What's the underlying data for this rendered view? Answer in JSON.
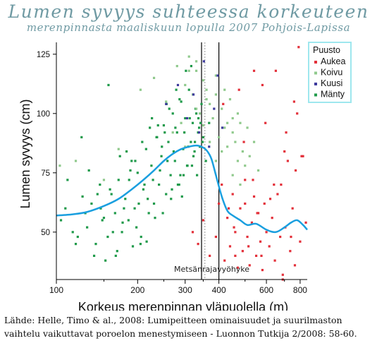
{
  "figure": {
    "title": "Lumen syvyys suhteessa korkeuteen",
    "subtitle": "merenpinnasta maaliskuun lopulla 2007 Pohjois-Lapissa",
    "source_line1": "Lähde: Helle, Timo & al., 2008: Lumipeitteen ominaisuudet ja suurilmaston",
    "source_line2": "vaihtelu vaikuttavat poroelon menestymiseen - Luonnon Tutkija 2/2008: 58-60."
  },
  "colors": {
    "Aukea": "#e3303a",
    "Koivu": "#8fc98c",
    "Kuusi": "#3d3a9c",
    "Mänty": "#1f9a4a",
    "trend": "#1a9fdf",
    "title": "#6f9aa3",
    "legend_border": "#9ee7ee"
  },
  "chart_data": {
    "type": "scatter",
    "xlabel": "Korkeus merenpinnan yläpuolella (m)",
    "ylabel": "Lumen syvyys (cm)",
    "x_scale": "log",
    "xlim": [
      100,
      850
    ],
    "ylim": [
      30,
      130
    ],
    "x_ticks": [
      100,
      200,
      300,
      400,
      600,
      800
    ],
    "y_ticks": [
      50,
      75,
      100,
      125
    ],
    "grid": false,
    "legend": {
      "title": "Puusto",
      "position": "top-right",
      "entries": [
        "Aukea",
        "Koivu",
        "Kuusi",
        "Mänty"
      ]
    },
    "annotation": "Metsänrajavyöhyke",
    "zone_lines_x": [
      345,
      355,
      400
    ],
    "series": [
      {
        "name": "Mänty",
        "x": [
          104,
          108,
          115,
          120,
          125,
          130,
          135,
          140,
          145,
          150,
          155,
          160,
          165,
          170,
          175,
          180,
          185,
          190,
          195,
          200,
          205,
          210,
          215,
          220,
          225,
          230,
          235,
          240,
          245,
          250,
          255,
          260,
          265,
          270,
          275,
          280,
          285,
          290,
          295,
          300,
          305,
          310,
          315,
          320,
          325,
          330,
          335,
          340,
          345,
          350,
          110,
          118,
          128,
          138,
          148,
          158,
          168,
          178,
          188,
          198,
          208,
          218,
          228,
          238,
          248,
          258,
          268,
          278,
          288,
          298,
          308,
          318,
          328,
          338,
          348,
          358,
          368,
          132,
          152,
          172,
          192,
          212,
          232,
          252,
          272,
          292,
          312,
          332,
          142,
          162,
          182,
          202,
          222,
          242,
          262,
          282,
          302,
          322,
          342,
          124,
          146,
          166,
          186,
          206,
          226,
          246,
          266,
          286,
          306,
          326,
          156,
          176,
          196,
          216,
          236,
          256,
          276,
          296,
          316,
          336
        ],
        "y": [
          55,
          60,
          50,
          48,
          65,
          52,
          62,
          45,
          70,
          56,
          48,
          66,
          58,
          72,
          50,
          64,
          55,
          80,
          60,
          75,
          45,
          68,
          85,
          58,
          78,
          62,
          90,
          70,
          82,
          95,
          66,
          88,
          74,
          100,
          80,
          92,
          70,
          105,
          85,
          98,
          78,
          110,
          88,
          96,
          84,
          100,
          92,
          86,
          104,
          90,
          72,
          45,
          58,
          40,
          55,
          68,
          42,
          60,
          76,
          52,
          88,
          64,
          72,
          95,
          58,
          80,
          68,
          110,
          74,
          92,
          86,
          78,
          102,
          94,
          88,
          80,
          96,
          76,
          38,
          82,
          44,
          70,
          56,
          92,
          84,
          65,
          98,
          74,
          66,
          50,
          84,
          62,
          94,
          76,
          102,
          70,
          118,
          82,
          96,
          90,
          60,
          40,
          72,
          48,
          98,
          86,
          64,
          106,
          78,
          88,
          112,
          54,
          80,
          46,
          90,
          104,
          94,
          74,
          120,
          98
        ]
      },
      {
        "name": "Koivu",
        "x": [
          103,
          118,
          150,
          170,
          205,
          230,
          255,
          280,
          300,
          310,
          320,
          330,
          340,
          350,
          360,
          370,
          380,
          390,
          400,
          410,
          420,
          430,
          440,
          450,
          460,
          470,
          480,
          490,
          500,
          520,
          540,
          560,
          290,
          310,
          330,
          350,
          370,
          390,
          410,
          430,
          450,
          470,
          270,
          300,
          330,
          360,
          390,
          420,
          450,
          480,
          510
        ],
        "y": [
          78,
          80,
          72,
          85,
          110,
          115,
          105,
          120,
          112,
          118,
          108,
          122,
          100,
          95,
          110,
          104,
          98,
          116,
          90,
          102,
          94,
          86,
          106,
          92,
          88,
          80,
          96,
          84,
          78,
          82,
          88,
          76,
          96,
          124,
          102,
          114,
          88,
          108,
          84,
          96,
          74,
          100,
          92,
          86,
          118,
          106,
          80,
          110,
          98,
          70,
          94
        ]
      },
      {
        "name": "Kuusi",
        "x": [
          255,
          282,
          305,
          322,
          338,
          352,
          368,
          384,
          396,
          412
        ],
        "y": [
          104,
          112,
          98,
          108,
          92,
          122,
          86,
          102,
          116,
          94
        ]
      },
      {
        "name": "Aukea",
        "x": [
          320,
          335,
          350,
          370,
          390,
          400,
          410,
          420,
          430,
          440,
          450,
          460,
          470,
          480,
          490,
          500,
          510,
          520,
          530,
          540,
          550,
          560,
          570,
          580,
          590,
          600,
          615,
          630,
          645,
          660,
          675,
          690,
          705,
          720,
          735,
          750,
          765,
          780,
          800,
          820,
          840,
          415,
          435,
          455,
          475,
          495,
          515,
          535,
          555,
          575,
          595,
          620,
          650,
          680,
          710,
          740,
          770,
          760,
          790,
          540,
          580,
          640,
          700,
          810,
          460,
          500,
          690
        ],
        "y": [
          50,
          45,
          55,
          40,
          48,
          62,
          70,
          38,
          56,
          44,
          66,
          50,
          35,
          60,
          42,
          72,
          48,
          36,
          54,
          65,
          40,
          58,
          46,
          34,
          62,
          50,
          44,
          56,
          38,
          66,
          48,
          32,
          52,
          80,
          42,
          60,
          36,
          100,
          46,
          82,
          54,
          104,
          60,
          52,
          110,
          88,
          44,
          72,
          58,
          40,
          96,
          64,
          118,
          70,
          92,
          48,
          76,
          105,
          128,
          118,
          112,
          70,
          84,
          82,
          40,
          62,
          30
        ]
      }
    ],
    "trend": {
      "name": "",
      "x": [
        100,
        115,
        130,
        150,
        170,
        190,
        210,
        230,
        250,
        270,
        290,
        310,
        330,
        345,
        360,
        375,
        390,
        410,
        430,
        450,
        480,
        510,
        550,
        600,
        650,
        700,
        740,
        780,
        820,
        850
      ],
      "y": [
        57,
        57.5,
        58.5,
        61,
        64,
        68,
        72,
        76,
        80,
        83,
        85,
        86,
        86.5,
        86,
        84.5,
        81,
        74,
        65,
        59,
        57,
        55,
        53,
        53.5,
        51,
        50,
        52,
        54,
        55,
        53,
        51
      ]
    }
  }
}
